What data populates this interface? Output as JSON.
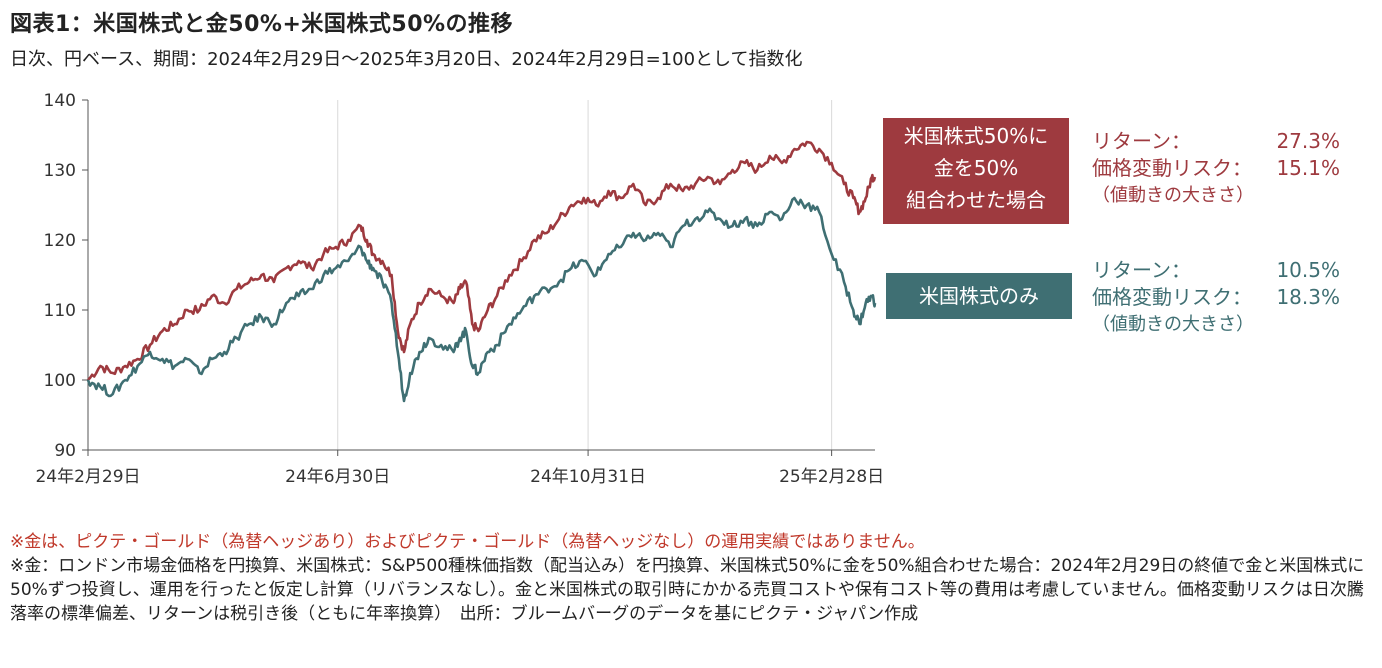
{
  "title": "図表1：米国株式と金50%+米国株式50%の推移",
  "subtitle": "日次、円ベース、期間：2024年2月29日～2025年3月20日、2024年2月29日=100として指数化",
  "colors": {
    "mix": "#9e3a3f",
    "us": "#3f6f73",
    "grid": "#d9d9d9",
    "note_red": "#c0392b"
  },
  "chart_data": {
    "type": "line",
    "ylim": [
      90,
      140
    ],
    "yticks": [
      "90",
      "100",
      "110",
      "120",
      "130",
      "140"
    ],
    "xticks": [
      {
        "label": "24年2月29日",
        "month": 0
      },
      {
        "label": "24年6月30日",
        "month": 4.03
      },
      {
        "label": "24年10月31日",
        "month": 8.07
      },
      {
        "label": "25年2月28日",
        "month": 12.0
      }
    ],
    "xlim_months": [
      0,
      12.7
    ],
    "series": [
      {
        "name": "米国株式50%に金を50%組合わせた場合",
        "points": [
          [
            0,
            100
          ],
          [
            0.2,
            102
          ],
          [
            0.4,
            101
          ],
          [
            0.6,
            102
          ],
          [
            0.8,
            103
          ],
          [
            1.0,
            105
          ],
          [
            1.2,
            107
          ],
          [
            1.4,
            108
          ],
          [
            1.6,
            110
          ],
          [
            1.8,
            110
          ],
          [
            2.0,
            112
          ],
          [
            2.2,
            111
          ],
          [
            2.4,
            113
          ],
          [
            2.6,
            114
          ],
          [
            2.8,
            115
          ],
          [
            3.0,
            114
          ],
          [
            3.2,
            116
          ],
          [
            3.4,
            117
          ],
          [
            3.6,
            116
          ],
          [
            3.8,
            118
          ],
          [
            4.0,
            119
          ],
          [
            4.2,
            120
          ],
          [
            4.4,
            122
          ],
          [
            4.5,
            120
          ],
          [
            4.6,
            118
          ],
          [
            4.75,
            117
          ],
          [
            4.9,
            115
          ],
          [
            5.0,
            107
          ],
          [
            5.1,
            104
          ],
          [
            5.2,
            108
          ],
          [
            5.35,
            111
          ],
          [
            5.5,
            113
          ],
          [
            5.7,
            112
          ],
          [
            5.9,
            111
          ],
          [
            6.0,
            113
          ],
          [
            6.1,
            114
          ],
          [
            6.2,
            108
          ],
          [
            6.3,
            107
          ],
          [
            6.45,
            110
          ],
          [
            6.6,
            112
          ],
          [
            6.8,
            115
          ],
          [
            7.0,
            117
          ],
          [
            7.2,
            120
          ],
          [
            7.4,
            121
          ],
          [
            7.6,
            123
          ],
          [
            7.8,
            125
          ],
          [
            8.0,
            126
          ],
          [
            8.2,
            125
          ],
          [
            8.4,
            127
          ],
          [
            8.6,
            126
          ],
          [
            8.8,
            128
          ],
          [
            9.0,
            125
          ],
          [
            9.2,
            126
          ],
          [
            9.4,
            128
          ],
          [
            9.6,
            127
          ],
          [
            9.8,
            128
          ],
          [
            10.0,
            129
          ],
          [
            10.2,
            128
          ],
          [
            10.4,
            130
          ],
          [
            10.6,
            131
          ],
          [
            10.8,
            130
          ],
          [
            11.0,
            132
          ],
          [
            11.2,
            131
          ],
          [
            11.4,
            133
          ],
          [
            11.6,
            134
          ],
          [
            11.8,
            133
          ],
          [
            12.0,
            131
          ],
          [
            12.2,
            128
          ],
          [
            12.35,
            126
          ],
          [
            12.45,
            124
          ],
          [
            12.55,
            126
          ],
          [
            12.65,
            129
          ],
          [
            12.7,
            129
          ]
        ]
      },
      {
        "name": "米国株式のみ",
        "points": [
          [
            0,
            100
          ],
          [
            0.2,
            99
          ],
          [
            0.4,
            98
          ],
          [
            0.6,
            100
          ],
          [
            0.8,
            102
          ],
          [
            1.0,
            104
          ],
          [
            1.2,
            103
          ],
          [
            1.4,
            102
          ],
          [
            1.6,
            103
          ],
          [
            1.8,
            101
          ],
          [
            2.0,
            103
          ],
          [
            2.2,
            104
          ],
          [
            2.4,
            106
          ],
          [
            2.6,
            108
          ],
          [
            2.8,
            109
          ],
          [
            3.0,
            108
          ],
          [
            3.2,
            111
          ],
          [
            3.4,
            112
          ],
          [
            3.6,
            113
          ],
          [
            3.8,
            115
          ],
          [
            4.0,
            116
          ],
          [
            4.2,
            117
          ],
          [
            4.4,
            119
          ],
          [
            4.5,
            117
          ],
          [
            4.6,
            116
          ],
          [
            4.75,
            114
          ],
          [
            4.9,
            111
          ],
          [
            5.0,
            104
          ],
          [
            5.1,
            97
          ],
          [
            5.2,
            101
          ],
          [
            5.35,
            104
          ],
          [
            5.5,
            106
          ],
          [
            5.7,
            105
          ],
          [
            5.9,
            104
          ],
          [
            6.0,
            106
          ],
          [
            6.1,
            107
          ],
          [
            6.2,
            102
          ],
          [
            6.3,
            101
          ],
          [
            6.45,
            104
          ],
          [
            6.6,
            105
          ],
          [
            6.8,
            108
          ],
          [
            7.0,
            110
          ],
          [
            7.2,
            112
          ],
          [
            7.4,
            113
          ],
          [
            7.6,
            114
          ],
          [
            7.8,
            116
          ],
          [
            8.0,
            117
          ],
          [
            8.2,
            115
          ],
          [
            8.4,
            118
          ],
          [
            8.6,
            119
          ],
          [
            8.8,
            121
          ],
          [
            9.0,
            120
          ],
          [
            9.2,
            121
          ],
          [
            9.4,
            119
          ],
          [
            9.6,
            122
          ],
          [
            9.8,
            123
          ],
          [
            10.0,
            124
          ],
          [
            10.2,
            123
          ],
          [
            10.4,
            122
          ],
          [
            10.6,
            123
          ],
          [
            10.8,
            122
          ],
          [
            11.0,
            124
          ],
          [
            11.2,
            123
          ],
          [
            11.4,
            126
          ],
          [
            11.6,
            125
          ],
          [
            11.8,
            124
          ],
          [
            12.0,
            118
          ],
          [
            12.2,
            114
          ],
          [
            12.35,
            110
          ],
          [
            12.45,
            108
          ],
          [
            12.55,
            111
          ],
          [
            12.65,
            112
          ],
          [
            12.7,
            111
          ]
        ]
      }
    ]
  },
  "legend": {
    "mix_label_lines": [
      "米国株式50%に",
      "金を50%",
      "組合わせた場合"
    ],
    "us_label": "米国株式のみ",
    "mix_stats": {
      "return_label": "リターン：",
      "return_value": "27.3%",
      "risk_label": "価格変動リスク：",
      "risk_value": "15.1%",
      "note": "（値動きの大きさ）"
    },
    "us_stats": {
      "return_label": "リターン：",
      "return_value": "10.5%",
      "risk_label": "価格変動リスク：",
      "risk_value": "18.3%",
      "note": "（値動きの大きさ）"
    }
  },
  "notes": {
    "line1": "※金は、ピクテ・ゴールド（為替ヘッジあり）およびピクテ・ゴールド（為替ヘッジなし）の運用実績ではありません。",
    "line2": "※金：ロンドン市場金価格を円換算、米国株式：S&P500種株価指数（配当込み）を円換算、米国株式50%に金を50%組合わせた場合：2024年2月29日の終値で金と米国株式に50%ずつ投資し、運用を行ったと仮定し計算（リバランスなし）。金と米国株式の取引時にかかる売買コストや保有コスト等の費用は考慮していません。価格変動リスクは日次騰落率の標準偏差、リターンは税引き後（ともに年率換算）　出所：ブルームバーグのデータを基にピクテ・ジャパン作成"
  }
}
